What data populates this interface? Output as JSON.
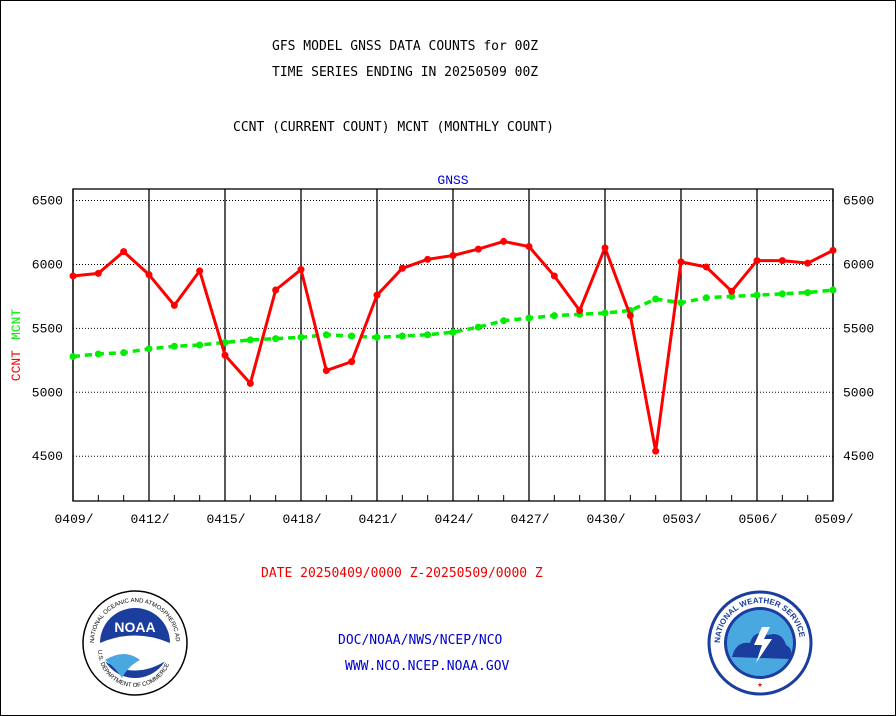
{
  "header": {
    "title_line1": "GFS MODEL GNSS DATA COUNTS for 00Z",
    "title_line2": "TIME SERIES ENDING IN 20250509 00Z",
    "subtitle": "CCNT (CURRENT COUNT) MCNT (MONTHLY COUNT)"
  },
  "footer": {
    "date_range": "DATE 20250409/0000 Z-20250509/0000 Z",
    "org": "DOC/NOAA/NWS/NCEP/NCO",
    "url": "WWW.NCO.NCEP.NOAA.GOV"
  },
  "logos": {
    "noaa_text": "NOAA",
    "noaa_ring": "NATIONAL OCEANIC AND ATMOSPHERIC ADMINISTRATION",
    "noaa_ring_bottom": "U.S. DEPARTMENT OF COMMERCE",
    "nws_ring": "NATIONAL WEATHER SERVICE"
  },
  "colors": {
    "current": "#ff0000",
    "monthly": "#00ee00",
    "text_blue": "#0000cc",
    "text_red": "#ee0000"
  },
  "chart_data": {
    "type": "line",
    "title": "GNSS",
    "ylabel_current": "CCNT",
    "ylabel_monthly": "MCNT",
    "ylim": [
      4150,
      6590
    ],
    "yticks": [
      4500,
      5000,
      5500,
      6000,
      6500
    ],
    "yticklabels": [
      "4500",
      "5000",
      "5500",
      "6000",
      "6500"
    ],
    "xlim": [
      0,
      30
    ],
    "xticks": [
      0,
      3,
      6,
      9,
      12,
      15,
      18,
      21,
      24,
      27,
      30
    ],
    "xticklabels": [
      "0409/",
      "0412/",
      "0415/",
      "0418/",
      "0421/",
      "0424/",
      "0427/",
      "0430/",
      "0503/",
      "0506/",
      "0509/"
    ],
    "grid": true,
    "x": [
      0,
      1,
      2,
      3,
      4,
      5,
      6,
      7,
      8,
      9,
      10,
      11,
      12,
      13,
      14,
      15,
      16,
      17,
      18,
      19,
      20,
      21,
      22,
      23,
      24,
      25,
      26,
      27,
      28,
      29,
      30
    ],
    "series": [
      {
        "name": "CCNT",
        "values": [
          5910,
          5930,
          6100,
          5920,
          5680,
          5950,
          5290,
          5070,
          5800,
          5960,
          5170,
          5240,
          5760,
          5970,
          6040,
          6070,
          6120,
          6180,
          6140,
          5910,
          5640,
          6130,
          5600,
          4540,
          6020,
          5980,
          5790,
          6030,
          6030,
          6010,
          6110
        ]
      },
      {
        "name": "MCNT",
        "values": [
          5280,
          5300,
          5310,
          5340,
          5360,
          5370,
          5390,
          5410,
          5420,
          5430,
          5450,
          5440,
          5430,
          5440,
          5450,
          5470,
          5510,
          5560,
          5580,
          5600,
          5610,
          5620,
          5640,
          5730,
          5700,
          5740,
          5750,
          5760,
          5770,
          5780,
          5800
        ]
      }
    ]
  }
}
